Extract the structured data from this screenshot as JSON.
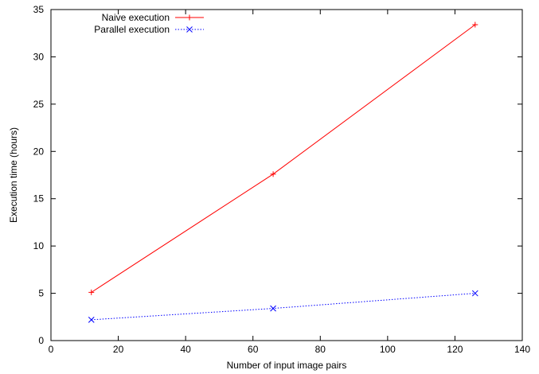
{
  "chart_data": {
    "type": "line",
    "title": "",
    "xlabel": "Number of input image pairs",
    "ylabel": "Execution time (hours)",
    "xlim": [
      0,
      140
    ],
    "ylim": [
      0,
      35
    ],
    "xticks": [
      0,
      20,
      40,
      60,
      80,
      100,
      120,
      140
    ],
    "yticks": [
      0,
      5,
      10,
      15,
      20,
      25,
      30,
      35
    ],
    "grid": false,
    "legend_position": "top-left",
    "series": [
      {
        "name": "Naive execution",
        "color": "#ff0000",
        "line_style": "solid",
        "marker": "plus",
        "x": [
          12,
          66,
          126
        ],
        "y": [
          5.1,
          17.6,
          33.4
        ]
      },
      {
        "name": "Parallel execution",
        "color": "#0000ff",
        "line_style": "dotted",
        "marker": "cross",
        "x": [
          12,
          66,
          126
        ],
        "y": [
          2.2,
          3.4,
          5.0
        ]
      }
    ]
  }
}
